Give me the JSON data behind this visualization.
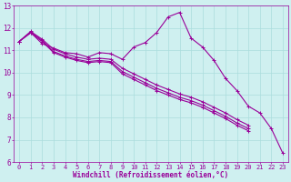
{
  "background_color": "#cff0f0",
  "grid_color": "#aadddd",
  "line_color": "#990099",
  "marker": "+",
  "markersize": 3,
  "linewidth": 0.8,
  "xlabel": "Windchill (Refroidissement éolien,°C)",
  "xlabel_fontsize": 5.5,
  "xtick_fontsize": 5,
  "ytick_fontsize": 5.5,
  "xlim": [
    -0.5,
    23.5
  ],
  "ylim": [
    6,
    13
  ],
  "yticks": [
    6,
    7,
    8,
    9,
    10,
    11,
    12,
    13
  ],
  "xticks": [
    0,
    1,
    2,
    3,
    4,
    5,
    6,
    7,
    8,
    9,
    10,
    11,
    12,
    13,
    14,
    15,
    16,
    17,
    18,
    19,
    20,
    21,
    22,
    23
  ],
  "series": [
    {
      "x": [
        0,
        1,
        2,
        3,
        4,
        5,
        6,
        7,
        8,
        9,
        10,
        11,
        12,
        13,
        14,
        15,
        16,
        17,
        18,
        19,
        20,
        21,
        22,
        23
      ],
      "y": [
        11.4,
        11.8,
        11.3,
        11.1,
        10.9,
        10.85,
        10.7,
        10.9,
        10.85,
        10.6,
        11.15,
        11.35,
        11.8,
        12.5,
        12.7,
        11.55,
        11.15,
        10.55,
        9.75,
        9.2,
        8.5,
        8.2,
        7.5,
        6.4
      ]
    },
    {
      "x": [
        0,
        1,
        2,
        3,
        4,
        5,
        6,
        7,
        8,
        9,
        10,
        11,
        12,
        13,
        14,
        15,
        16,
        17,
        18,
        19,
        20
      ],
      "y": [
        11.4,
        11.85,
        11.5,
        11.05,
        10.85,
        10.7,
        10.6,
        10.65,
        10.6,
        10.2,
        9.95,
        9.7,
        9.45,
        9.25,
        9.05,
        8.9,
        8.7,
        8.45,
        8.2,
        7.9,
        7.65
      ]
    },
    {
      "x": [
        0,
        1,
        2,
        3,
        4,
        5,
        6,
        7,
        8,
        9,
        10,
        11,
        12,
        13,
        14,
        15,
        16,
        17,
        18,
        19,
        20
      ],
      "y": [
        11.4,
        11.82,
        11.45,
        10.95,
        10.75,
        10.6,
        10.5,
        10.55,
        10.5,
        10.05,
        9.8,
        9.55,
        9.3,
        9.1,
        8.9,
        8.75,
        8.55,
        8.3,
        8.05,
        7.75,
        7.5
      ]
    },
    {
      "x": [
        0,
        1,
        2,
        3,
        4,
        5,
        6,
        7,
        8,
        9,
        10,
        11,
        12,
        13,
        14,
        15,
        16,
        17,
        18,
        19,
        20
      ],
      "y": [
        11.4,
        11.78,
        11.4,
        10.9,
        10.7,
        10.55,
        10.45,
        10.5,
        10.45,
        9.95,
        9.7,
        9.45,
        9.2,
        9.0,
        8.8,
        8.65,
        8.45,
        8.2,
        7.95,
        7.65,
        7.4
      ]
    }
  ]
}
